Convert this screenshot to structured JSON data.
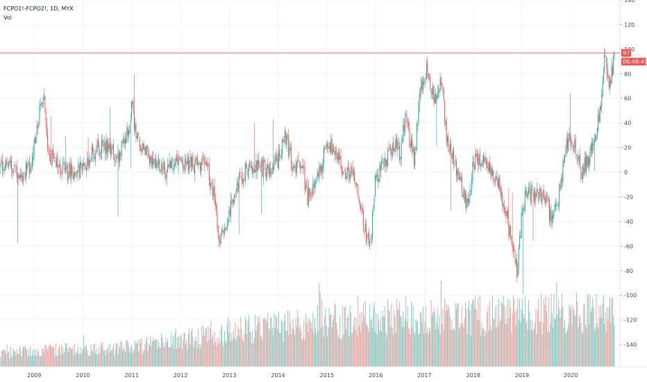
{
  "chart_data": {
    "type": "candlestick",
    "symbol_label": "FCPO1!-FCPO2!, 1D, MYX",
    "volume_label": "Vol",
    "price_axis": {
      "ticks": [
        140,
        120,
        100,
        80,
        60,
        40,
        20,
        0,
        -20,
        -40,
        -60,
        -80,
        -100,
        -120,
        -140
      ],
      "ylim": [
        -158,
        140
      ]
    },
    "time_axis": {
      "ticks": [
        "2009",
        "2010",
        "2011",
        "2012",
        "2013",
        "2014",
        "2015",
        "2016",
        "2017",
        "2018",
        "2019",
        "2020"
      ],
      "xlim": [
        2008.3,
        2020.95
      ]
    },
    "last_price_label": "97",
    "countdown_label": "06:48:41",
    "last_price": 97,
    "up_color": "#26a69a",
    "down_color": "#ef5350",
    "volume_up_color": "#7fcdc4",
    "volume_down_color": "#f4a3a1",
    "price_path": [
      [
        2008.3,
        5
      ],
      [
        2008.5,
        8
      ],
      [
        2008.7,
        -2
      ],
      [
        2008.9,
        2
      ],
      [
        2009.0,
        20
      ],
      [
        2009.1,
        45
      ],
      [
        2009.2,
        65
      ],
      [
        2009.3,
        15
      ],
      [
        2009.5,
        5
      ],
      [
        2009.7,
        0
      ],
      [
        2009.9,
        2
      ],
      [
        2010.1,
        10
      ],
      [
        2010.3,
        20
      ],
      [
        2010.5,
        22
      ],
      [
        2010.7,
        10
      ],
      [
        2010.9,
        30
      ],
      [
        2011.0,
        55
      ],
      [
        2011.1,
        30
      ],
      [
        2011.3,
        15
      ],
      [
        2011.5,
        5
      ],
      [
        2011.7,
        0
      ],
      [
        2011.9,
        10
      ],
      [
        2012.1,
        8
      ],
      [
        2012.3,
        5
      ],
      [
        2012.5,
        10
      ],
      [
        2012.7,
        -20
      ],
      [
        2012.8,
        -55
      ],
      [
        2012.9,
        -50
      ],
      [
        2013.0,
        -30
      ],
      [
        2013.2,
        -8
      ],
      [
        2013.4,
        5
      ],
      [
        2013.6,
        5
      ],
      [
        2013.8,
        0
      ],
      [
        2014.0,
        10
      ],
      [
        2014.15,
        30
      ],
      [
        2014.3,
        5
      ],
      [
        2014.5,
        5
      ],
      [
        2014.6,
        -20
      ],
      [
        2014.7,
        -15
      ],
      [
        2014.9,
        5
      ],
      [
        2015.0,
        25
      ],
      [
        2015.2,
        12
      ],
      [
        2015.4,
        0
      ],
      [
        2015.6,
        -5
      ],
      [
        2015.7,
        -30
      ],
      [
        2015.8,
        -50
      ],
      [
        2015.9,
        -55
      ],
      [
        2016.0,
        -5
      ],
      [
        2016.2,
        10
      ],
      [
        2016.4,
        25
      ],
      [
        2016.5,
        15
      ],
      [
        2016.6,
        45
      ],
      [
        2016.8,
        10
      ],
      [
        2016.9,
        65
      ],
      [
        2017.05,
        85
      ],
      [
        2017.2,
        60
      ],
      [
        2017.35,
        75
      ],
      [
        2017.45,
        30
      ],
      [
        2017.6,
        10
      ],
      [
        2017.8,
        -15
      ],
      [
        2017.9,
        -30
      ],
      [
        2018.0,
        8
      ],
      [
        2018.1,
        12
      ],
      [
        2018.3,
        5
      ],
      [
        2018.5,
        -5
      ],
      [
        2018.65,
        -30
      ],
      [
        2018.8,
        -60
      ],
      [
        2018.9,
        -80
      ],
      [
        2019.0,
        -30
      ],
      [
        2019.1,
        -15
      ],
      [
        2019.3,
        -20
      ],
      [
        2019.5,
        -20
      ],
      [
        2019.6,
        -40
      ],
      [
        2019.75,
        -20
      ],
      [
        2019.85,
        5
      ],
      [
        2019.95,
        30
      ],
      [
        2020.1,
        20
      ],
      [
        2020.2,
        0
      ],
      [
        2020.35,
        10
      ],
      [
        2020.5,
        25
      ],
      [
        2020.6,
        50
      ],
      [
        2020.7,
        95
      ],
      [
        2020.8,
        70
      ],
      [
        2020.9,
        97
      ]
    ],
    "volume_level_path": [
      [
        2008.3,
        0.18
      ],
      [
        2009.5,
        0.22
      ],
      [
        2010.5,
        0.23
      ],
      [
        2011.5,
        0.3
      ],
      [
        2012.5,
        0.4
      ],
      [
        2013.0,
        0.47
      ],
      [
        2014.0,
        0.52
      ],
      [
        2015.0,
        0.6
      ],
      [
        2016.0,
        0.62
      ],
      [
        2016.8,
        0.68
      ],
      [
        2017.5,
        0.66
      ],
      [
        2018.5,
        0.68
      ],
      [
        2019.5,
        0.7
      ],
      [
        2020.5,
        0.72
      ],
      [
        2020.95,
        0.66
      ]
    ]
  }
}
